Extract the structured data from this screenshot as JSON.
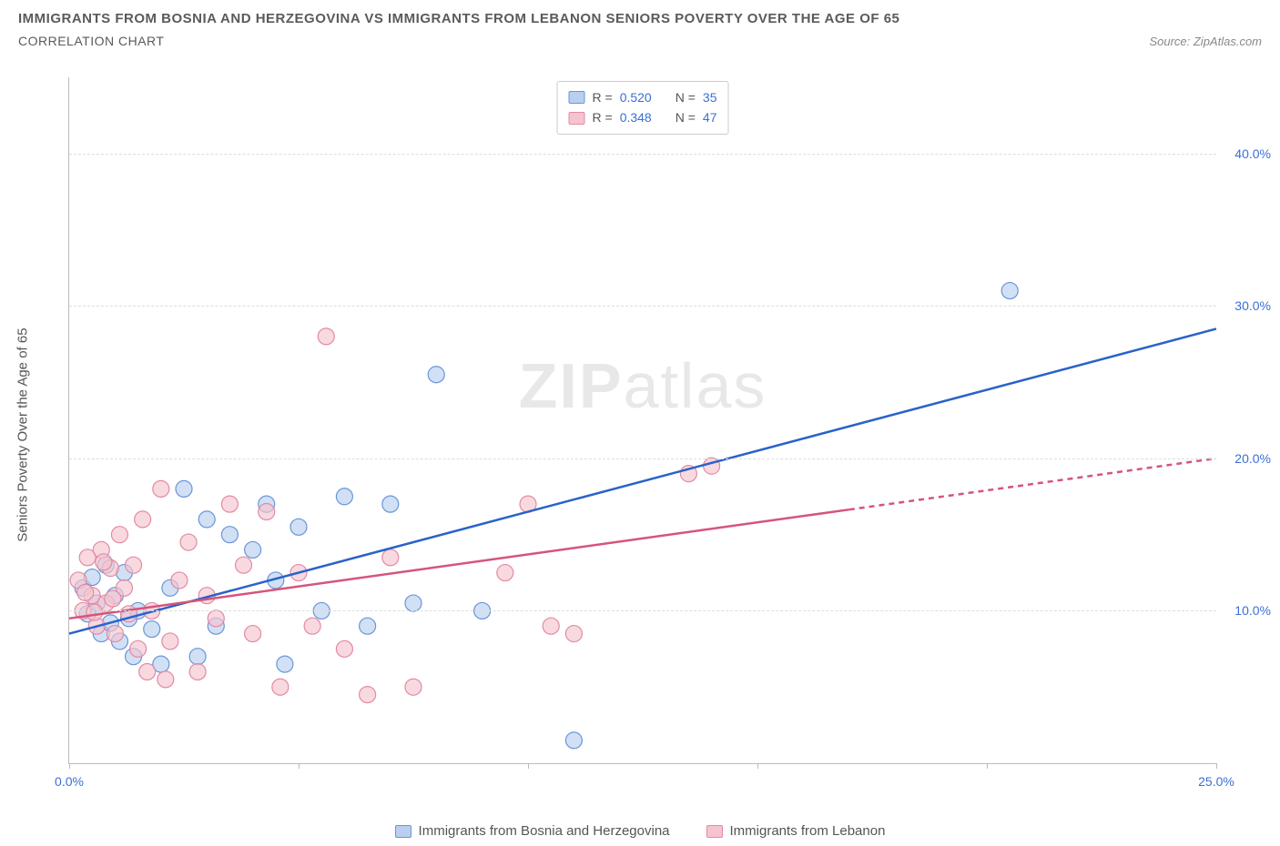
{
  "header": {
    "title": "IMMIGRANTS FROM BOSNIA AND HERZEGOVINA VS IMMIGRANTS FROM LEBANON SENIORS POVERTY OVER THE AGE OF 65",
    "subtitle": "CORRELATION CHART",
    "source": "Source: ZipAtlas.com"
  },
  "chart": {
    "type": "scatter",
    "ylabel": "Seniors Poverty Over the Age of 65",
    "xlim": [
      0,
      25
    ],
    "ylim": [
      0,
      45
    ],
    "xticks": [
      0,
      5,
      10,
      15,
      20,
      25
    ],
    "xtick_labels": [
      "0.0%",
      "",
      "",
      "",
      "",
      "25.0%"
    ],
    "yticks": [
      10,
      20,
      30,
      40
    ],
    "ytick_labels": [
      "10.0%",
      "20.0%",
      "30.0%",
      "40.0%"
    ],
    "grid_color": "#dddddd",
    "axis_color": "#bbbbbb",
    "background_color": "#ffffff",
    "tick_label_color": "#3b6fd6",
    "axis_label_color": "#555555",
    "watermark": "ZIPatlas",
    "legend_top": [
      {
        "swatch_fill": "#b9cff0",
        "swatch_stroke": "#6a95d8",
        "r_label": "R =",
        "r_value": "0.520",
        "n_label": "N =",
        "n_value": "35"
      },
      {
        "swatch_fill": "#f5c4d0",
        "swatch_stroke": "#e38aa3",
        "r_label": "R =",
        "r_value": "0.348",
        "n_label": "N =",
        "n_value": "47"
      }
    ],
    "legend_bottom": [
      {
        "swatch_fill": "#b9cff0",
        "swatch_stroke": "#6a95d8",
        "label": "Immigrants from Bosnia and Herzegovina"
      },
      {
        "swatch_fill": "#f5c4d0",
        "swatch_stroke": "#e38aa3",
        "label": "Immigrants from Lebanon"
      }
    ],
    "series": [
      {
        "name": "bosnia",
        "color_fill": "#b9cff0",
        "color_stroke": "#6a95d8",
        "marker_radius": 9,
        "marker_opacity": 0.65,
        "trend": {
          "x1": 0,
          "y1": 8.5,
          "x2": 25,
          "y2": 28.5,
          "color": "#2a62c9",
          "width": 2.5,
          "dash_after_x": null
        },
        "points": [
          [
            0.3,
            11.5
          ],
          [
            0.4,
            9.8
          ],
          [
            0.5,
            12.2
          ],
          [
            0.6,
            10.5
          ],
          [
            0.7,
            8.5
          ],
          [
            0.8,
            13.0
          ],
          [
            0.9,
            9.2
          ],
          [
            1.0,
            11.0
          ],
          [
            1.1,
            8.0
          ],
          [
            1.2,
            12.5
          ],
          [
            1.3,
            9.5
          ],
          [
            1.4,
            7.0
          ],
          [
            1.5,
            10.0
          ],
          [
            1.8,
            8.8
          ],
          [
            2.0,
            6.5
          ],
          [
            2.2,
            11.5
          ],
          [
            2.5,
            18.0
          ],
          [
            2.8,
            7.0
          ],
          [
            3.0,
            16.0
          ],
          [
            3.2,
            9.0
          ],
          [
            3.5,
            15.0
          ],
          [
            4.0,
            14.0
          ],
          [
            4.3,
            17.0
          ],
          [
            4.7,
            6.5
          ],
          [
            5.0,
            15.5
          ],
          [
            5.5,
            10.0
          ],
          [
            6.0,
            17.5
          ],
          [
            6.5,
            9.0
          ],
          [
            7.0,
            17.0
          ],
          [
            7.5,
            10.5
          ],
          [
            8.0,
            25.5
          ],
          [
            9.0,
            10.0
          ],
          [
            11.0,
            1.5
          ],
          [
            20.5,
            31.0
          ],
          [
            4.5,
            12.0
          ]
        ]
      },
      {
        "name": "lebanon",
        "color_fill": "#f5c4d0",
        "color_stroke": "#e38aa3",
        "marker_radius": 9,
        "marker_opacity": 0.65,
        "trend": {
          "x1": 0,
          "y1": 9.5,
          "x2": 25,
          "y2": 20.0,
          "color": "#d6547a",
          "width": 2.5,
          "dash_after_x": 17
        },
        "points": [
          [
            0.2,
            12.0
          ],
          [
            0.3,
            10.0
          ],
          [
            0.4,
            13.5
          ],
          [
            0.5,
            11.0
          ],
          [
            0.6,
            9.0
          ],
          [
            0.7,
            14.0
          ],
          [
            0.8,
            10.5
          ],
          [
            0.9,
            12.8
          ],
          [
            1.0,
            8.5
          ],
          [
            1.1,
            15.0
          ],
          [
            1.2,
            11.5
          ],
          [
            1.3,
            9.8
          ],
          [
            1.4,
            13.0
          ],
          [
            1.5,
            7.5
          ],
          [
            1.6,
            16.0
          ],
          [
            1.8,
            10.0
          ],
          [
            2.0,
            18.0
          ],
          [
            2.2,
            8.0
          ],
          [
            2.4,
            12.0
          ],
          [
            2.6,
            14.5
          ],
          [
            2.8,
            6.0
          ],
          [
            3.0,
            11.0
          ],
          [
            3.2,
            9.5
          ],
          [
            3.5,
            17.0
          ],
          [
            3.8,
            13.0
          ],
          [
            4.0,
            8.5
          ],
          [
            4.3,
            16.5
          ],
          [
            4.6,
            5.0
          ],
          [
            5.0,
            12.5
          ],
          [
            5.3,
            9.0
          ],
          [
            5.6,
            28.0
          ],
          [
            6.0,
            7.5
          ],
          [
            6.5,
            4.5
          ],
          [
            7.0,
            13.5
          ],
          [
            7.5,
            5.0
          ],
          [
            9.5,
            12.5
          ],
          [
            10.0,
            17.0
          ],
          [
            10.5,
            9.0
          ],
          [
            11.0,
            8.5
          ],
          [
            13.5,
            19.0
          ],
          [
            14.0,
            19.5
          ],
          [
            1.7,
            6.0
          ],
          [
            2.1,
            5.5
          ],
          [
            0.35,
            11.2
          ],
          [
            0.55,
            9.9
          ],
          [
            0.75,
            13.2
          ],
          [
            0.95,
            10.8
          ]
        ]
      }
    ]
  }
}
